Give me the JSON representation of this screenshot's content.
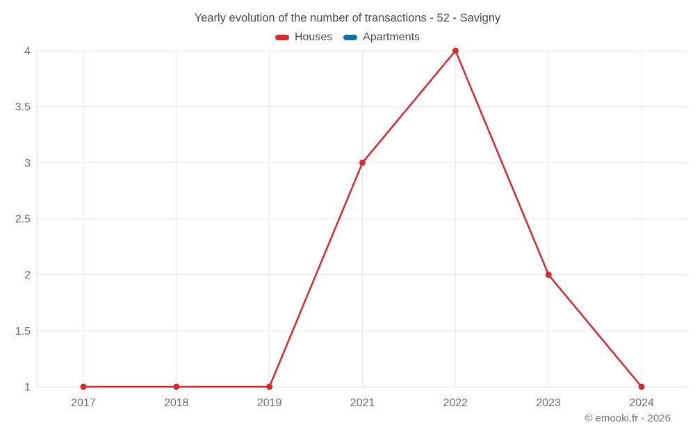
{
  "title": "Yearly evolution of the number of transactions - 52 - Savigny",
  "footer": "© emooki.fr - 2026",
  "colors": {
    "houses": "#d7282e",
    "apartments": "#1173a5",
    "gridline": "#e8e8e8",
    "axis_line": "#dedede",
    "tick_text": "#6e6e6e",
    "title_text": "#4a4a4a"
  },
  "legend": {
    "items": [
      {
        "label": "Houses",
        "color": "#d7282e"
      },
      {
        "label": "Apartments",
        "color": "#1173a5"
      }
    ]
  },
  "chart_data": {
    "type": "line",
    "title": "Yearly evolution of the number of transactions - 52 - Savigny",
    "categories": [
      "2017",
      "2018",
      "2019",
      "2021",
      "2022",
      "2023",
      "2024"
    ],
    "series": [
      {
        "name": "Houses",
        "color": "#d7282e",
        "values": [
          1,
          1,
          1,
          3,
          4,
          2,
          1
        ]
      },
      {
        "name": "Apartments",
        "color": "#1173a5",
        "values": []
      }
    ],
    "xlabel": "",
    "ylabel": "",
    "ylim": [
      1,
      4
    ],
    "yticks": [
      1,
      1.5,
      2,
      2.5,
      3,
      3.5,
      4
    ],
    "grid": true,
    "legend_position": "top"
  }
}
